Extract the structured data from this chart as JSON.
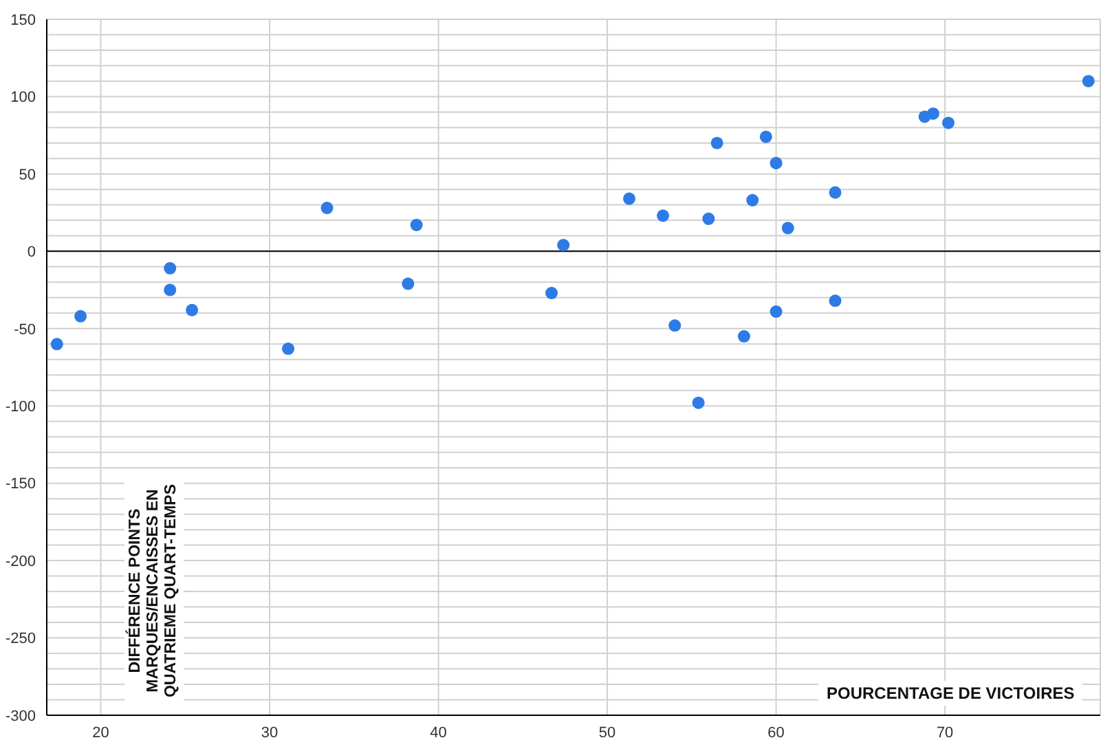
{
  "chart_data": {
    "type": "scatter",
    "xlabel": "POURCENTAGE DE VICTOIRES",
    "ylabel": "DIFFÉRENCE POINTS MARQUES/ENCAISSES EN QUATRIEME QUART-TEMPS",
    "xlim": [
      16.8,
      79.2
    ],
    "ylim": [
      -300,
      150
    ],
    "xticks": [
      20,
      30,
      40,
      50,
      60,
      70
    ],
    "yticks": [
      -300,
      {
        "value": -290,
        "label": null
      },
      {
        "value": -280,
        "label": null
      },
      {
        "value": -270,
        "label": null
      },
      {
        "value": -260,
        "label": null
      },
      -250,
      {
        "value": -240,
        "label": null
      },
      {
        "value": -230,
        "label": null
      },
      {
        "value": -220,
        "label": null
      },
      {
        "value": -210,
        "label": null
      },
      -200,
      {
        "value": -190,
        "label": null
      },
      {
        "value": -180,
        "label": null
      },
      {
        "value": -170,
        "label": null
      },
      {
        "value": -160,
        "label": null
      },
      -150,
      {
        "value": -140,
        "label": null
      },
      {
        "value": -130,
        "label": null
      },
      {
        "value": -120,
        "label": null
      },
      {
        "value": -110,
        "label": null
      },
      -100,
      {
        "value": -90,
        "label": null
      },
      {
        "value": -80,
        "label": null
      },
      {
        "value": -70,
        "label": null
      },
      {
        "value": -60,
        "label": null
      },
      -50,
      {
        "value": -40,
        "label": null
      },
      {
        "value": -30,
        "label": null
      },
      {
        "value": -20,
        "label": null
      },
      {
        "value": -10,
        "label": null
      },
      0,
      {
        "value": 10,
        "label": null
      },
      {
        "value": 20,
        "label": null
      },
      {
        "value": 30,
        "label": null
      },
      {
        "value": 40,
        "label": null
      },
      50,
      {
        "value": 60,
        "label": null
      },
      {
        "value": 70,
        "label": null
      },
      {
        "value": 80,
        "label": null
      },
      {
        "value": 90,
        "label": null
      },
      100,
      {
        "value": 110,
        "label": null
      },
      {
        "value": 120,
        "label": null
      },
      {
        "value": 130,
        "label": null
      },
      {
        "value": 140,
        "label": null
      },
      150
    ],
    "grid": true,
    "marker": "circle",
    "ref_lines": [
      {
        "axis": "y",
        "value": 0,
        "color": "#000000"
      }
    ],
    "series": [
      {
        "color": "#2f7be6",
        "x": [
          17.4,
          18.8,
          24.1,
          24.1,
          25.4,
          31.1,
          33.4,
          38.2,
          38.7,
          46.7,
          47.4,
          51.3,
          53.3,
          54.0,
          55.4,
          56.0,
          56.5,
          58.1,
          58.6,
          59.4,
          60.0,
          60.0,
          60.7,
          63.5,
          63.5,
          68.8,
          69.3,
          70.2,
          78.5
        ],
        "values": [
          -60,
          -42,
          -11,
          -25,
          -38,
          -63,
          28,
          -21,
          17,
          -27,
          4,
          34,
          23,
          -48,
          -98,
          21,
          70,
          -55,
          33,
          74,
          57,
          -39,
          15,
          38,
          -32,
          87,
          89,
          83,
          110
        ]
      }
    ]
  }
}
